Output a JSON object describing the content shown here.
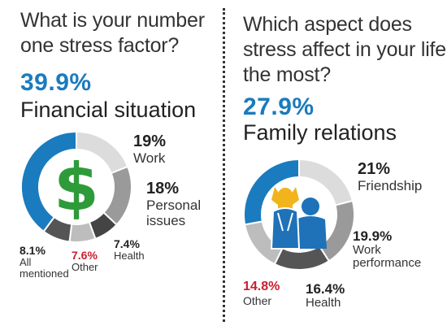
{
  "colors": {
    "accent": "#1a7bbf",
    "red": "#c8202f",
    "dollar_green": "#2e9b3a",
    "parent_blue": "#1f72b8",
    "child_yellow": "#f2b41d"
  },
  "left": {
    "question_line1": "What is your number",
    "question_line2": "one stress factor?",
    "top_pct": "39.9%",
    "top_label": "Financial situation",
    "icon": "dollar-icon",
    "callouts": {
      "work_pct": "19%",
      "work_lbl": "Work",
      "personal_pct": "18%",
      "personal_lbl1": "Personal",
      "personal_lbl2": "issues",
      "health_pct": "7.4%",
      "health_lbl": "Health",
      "other_pct": "7.6%",
      "other_lbl": "Other",
      "all_pct": "8.1%",
      "all_lbl1": "All",
      "all_lbl2": "mentioned"
    }
  },
  "right": {
    "question_line1": "Which aspect does",
    "question_line2": "stress affect in your life",
    "question_line3": "the most?",
    "top_pct": "27.9%",
    "top_label": "Family relations",
    "icon": "family-icon",
    "callouts": {
      "friend_pct": "21%",
      "friend_lbl": "Friendship",
      "work_pct": "19.9%",
      "work_lbl1": "Work",
      "work_lbl2": "performance",
      "health_pct": "16.4%",
      "health_lbl": "Health",
      "other_pct": "14.8%",
      "other_lbl": "Other"
    }
  },
  "chart_data": [
    {
      "type": "pie",
      "title": "What is your number one stress factor?",
      "categories": [
        "Financial situation",
        "Work",
        "Personal issues",
        "Health",
        "Other",
        "All mentioned"
      ],
      "values": [
        39.9,
        19,
        18,
        7.4,
        7.6,
        8.1
      ],
      "colors": [
        "#1a7bbf",
        "#dcdcdc",
        "#9a9a9a",
        "#444444",
        "#bdbdbd",
        "#555555"
      ]
    },
    {
      "type": "pie",
      "title": "Which aspect does stress affect in your life the most?",
      "categories": [
        "Family relations",
        "Friendship",
        "Work performance",
        "Health",
        "Other"
      ],
      "values": [
        27.9,
        21,
        19.9,
        16.4,
        14.8
      ],
      "colors": [
        "#1a7bbf",
        "#dcdcdc",
        "#9a9a9a",
        "#555555",
        "#bdbdbd"
      ]
    }
  ]
}
